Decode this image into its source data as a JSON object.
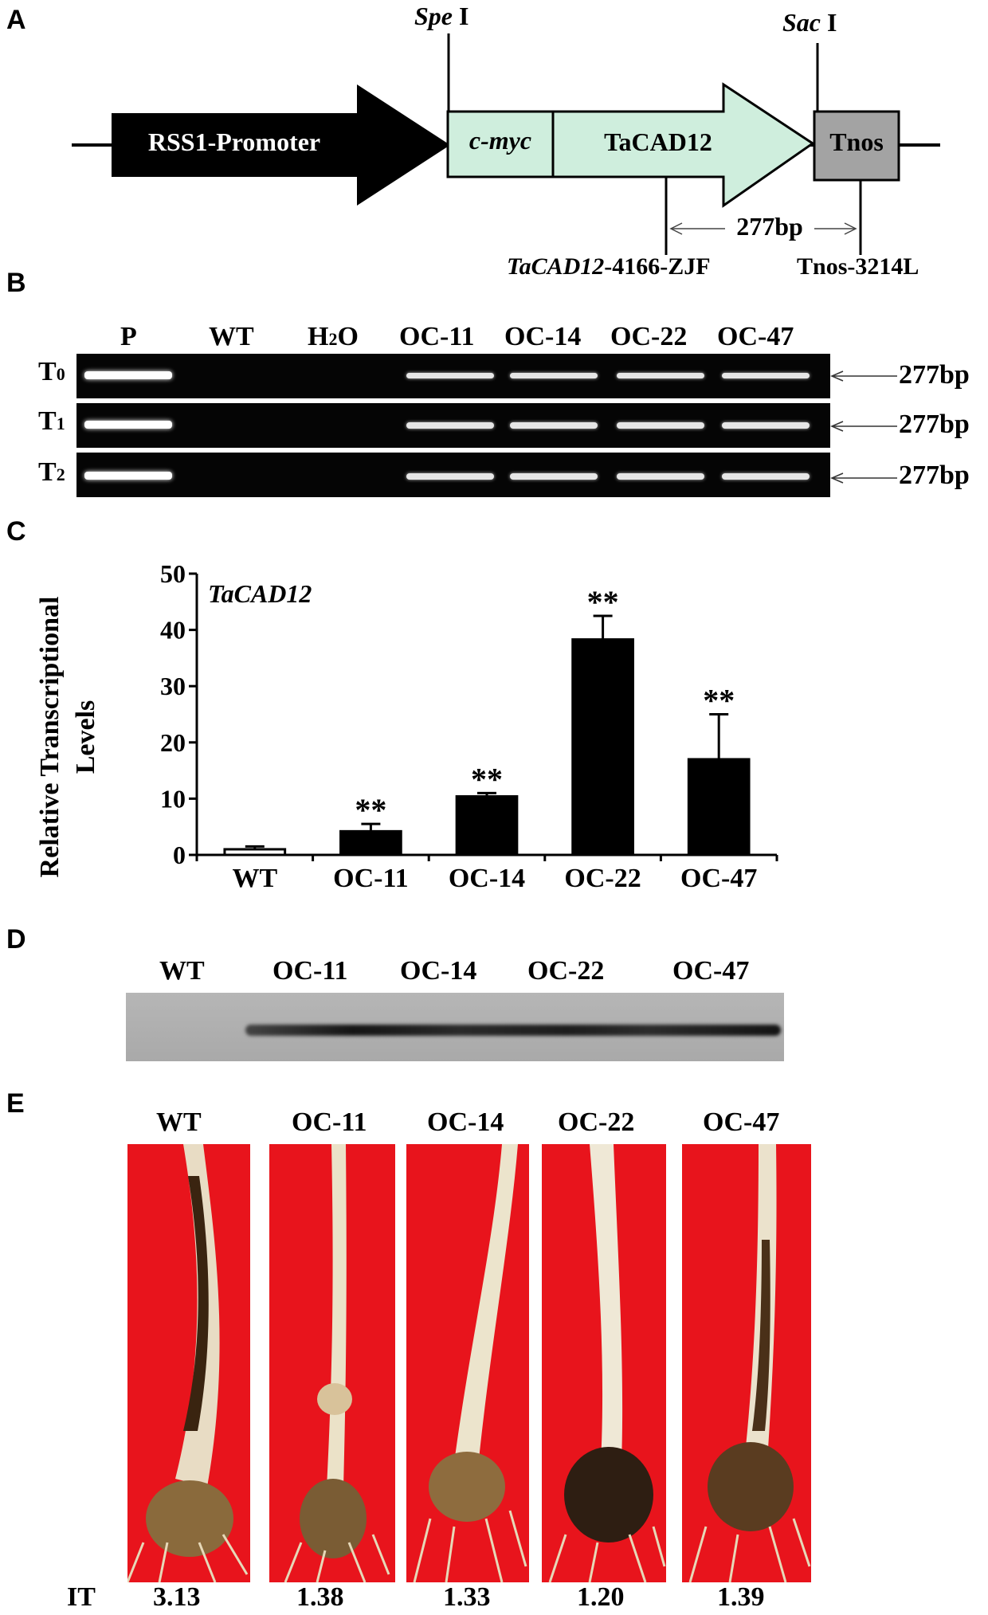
{
  "panels": {
    "a": "A",
    "b": "B",
    "c": "C",
    "d": "D",
    "e": "E"
  },
  "construct": {
    "promoter": "RSS1-Promoter",
    "tag": "c-myc",
    "gene": "TaCAD12",
    "terminator": "Tnos",
    "site_left": {
      "name": "Spe",
      "suffix": " I"
    },
    "site_right": {
      "name": "Sac",
      "suffix": " I"
    },
    "amplicon": "277bp",
    "primer_fwd_gene": "TaCAD12",
    "primer_fwd_rest": "-4166-ZJF",
    "primer_rev": "Tnos-3214L",
    "colors": {
      "promoter": "#000000",
      "tag_gene": "#cfeedd",
      "terminator": "#a3a3a3"
    }
  },
  "gel": {
    "lanes": [
      "P",
      "WT",
      "H2O",
      "OC-11",
      "OC-14",
      "OC-22",
      "OC-47"
    ],
    "h2o_label": {
      "base": "H",
      "sub": "2",
      "rest": "O"
    },
    "rows": [
      {
        "base": "T",
        "sub": "0",
        "size": "277bp",
        "bands": [
          1,
          0,
          0,
          1,
          1,
          1,
          1
        ]
      },
      {
        "base": "T",
        "sub": "1",
        "size": "277bp",
        "bands": [
          1,
          0,
          0,
          1,
          1,
          1,
          1
        ]
      },
      {
        "base": "T",
        "sub": "2",
        "size": "277bp",
        "bands": [
          1,
          0,
          0,
          1,
          1,
          1,
          1
        ]
      }
    ]
  },
  "chart_data": {
    "type": "bar",
    "title": "TaCAD12",
    "ylabel_line1": "Relative Transcriptional",
    "ylabel_line2": "Levels",
    "categories": [
      "WT",
      "OC-11",
      "OC-14",
      "OC-22",
      "OC-47"
    ],
    "values": [
      1.0,
      4.2,
      10.4,
      38.3,
      17.0
    ],
    "errors": [
      0.5,
      1.3,
      0.6,
      4.2,
      8.0
    ],
    "significance": [
      "",
      "**",
      "**",
      "**",
      "**"
    ],
    "bar_colors": [
      "#ffffff",
      "#000000",
      "#000000",
      "#000000",
      "#000000"
    ],
    "ylim": [
      0,
      50
    ],
    "yticks": [
      0,
      10,
      20,
      30,
      40,
      50
    ],
    "grid": false
  },
  "western": {
    "lanes": [
      "WT",
      "OC-11",
      "OC-14",
      "OC-22",
      "OC-47"
    ]
  },
  "phenotype": {
    "lines": [
      "WT",
      "OC-11",
      "OC-14",
      "OC-22",
      "OC-47"
    ],
    "it_label": "IT",
    "it_values": [
      "3.13",
      "1.38",
      "1.33",
      "1.20",
      "1.39"
    ]
  }
}
